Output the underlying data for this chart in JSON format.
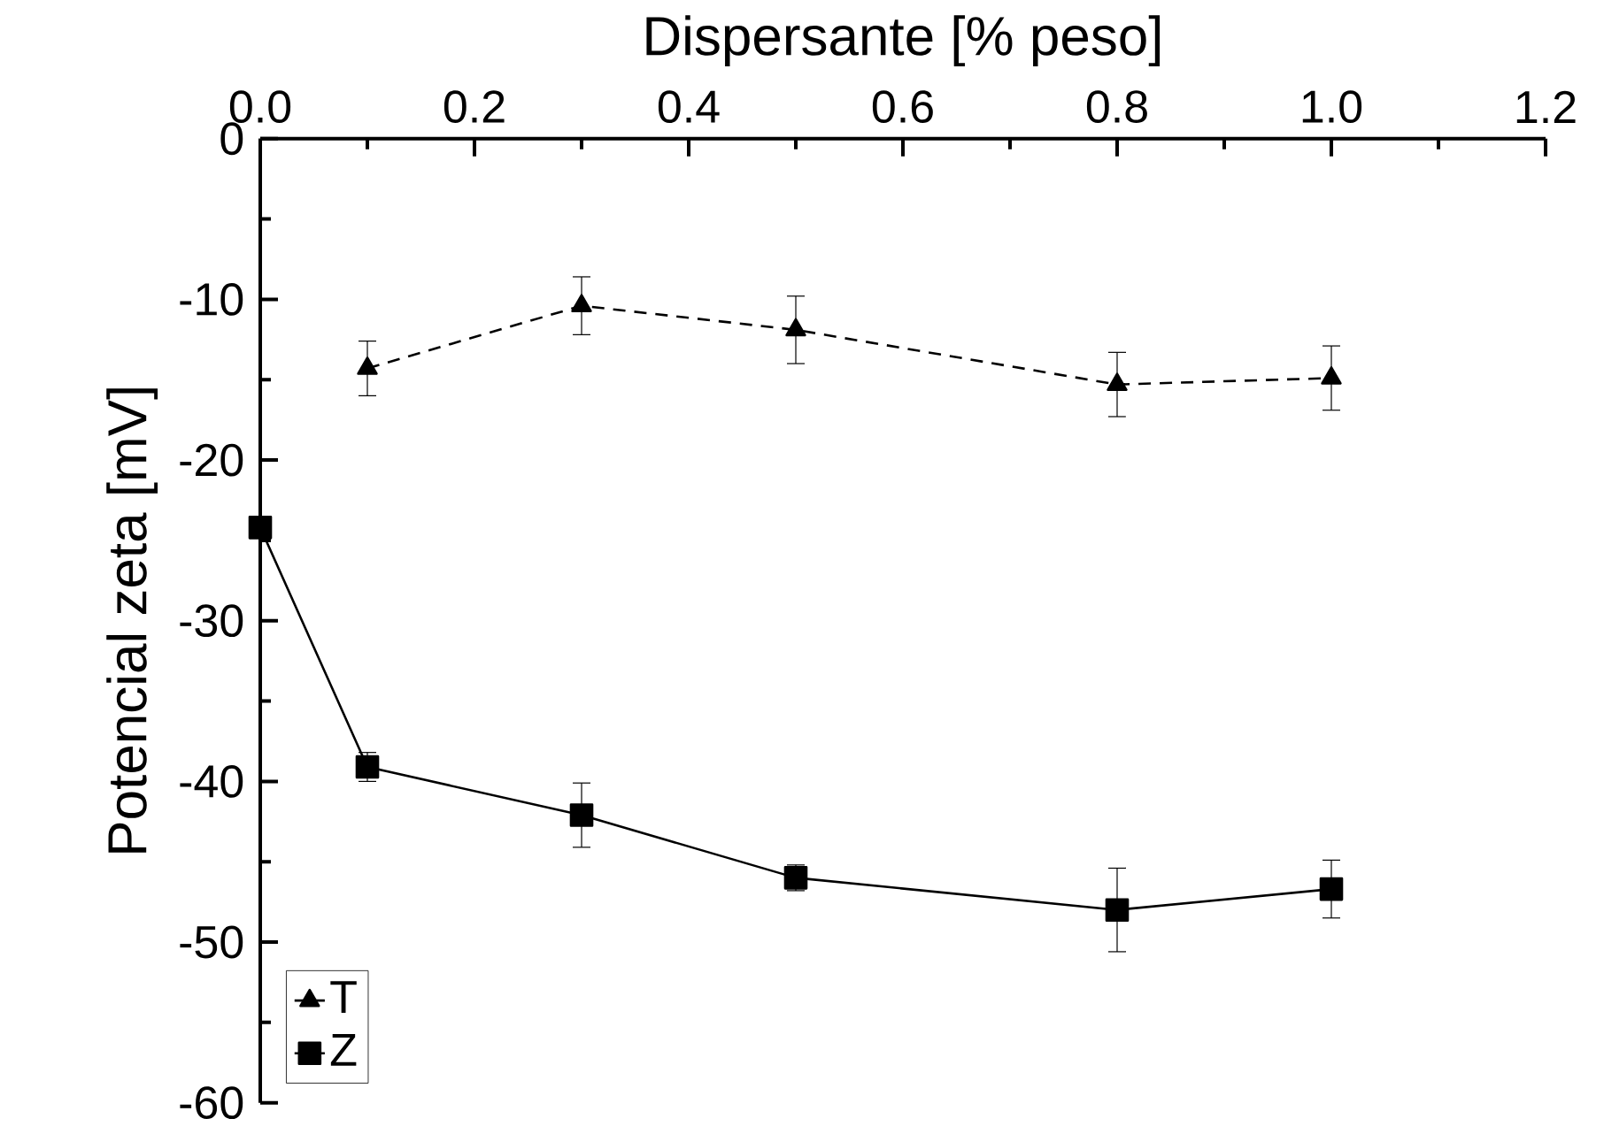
{
  "chart_data": {
    "type": "line",
    "xlabel": "Dispersante [% peso]",
    "ylabel": "Potencial zeta [mV]",
    "xlim": [
      0,
      1.2
    ],
    "xticks": [
      {
        "value": 0,
        "label": "0.0"
      },
      {
        "value": 0.2,
        "label": "0.2"
      },
      {
        "value": 0.4,
        "label": "0.4"
      },
      {
        "value": 0.6,
        "label": "0.6"
      },
      {
        "value": 0.8,
        "label": "0.8"
      },
      {
        "value": 1.0,
        "label": "1.0"
      },
      {
        "value": 1.2,
        "label": "1.2"
      }
    ],
    "ylim": [
      -60,
      0
    ],
    "yticks": [
      -60,
      -50,
      -40,
      -30,
      -20,
      -10,
      0
    ],
    "grid": false,
    "legend": "bottom left",
    "series": [
      {
        "name": "T",
        "color": "#000000",
        "marker": "triangle",
        "line_style": "dashed",
        "x": [
          0.1,
          0.3,
          0.5,
          0.8,
          1.0
        ],
        "values": [
          -14.3,
          -10.4,
          -11.9,
          -15.3,
          -14.9
        ],
        "errors": [
          1.7,
          1.8,
          2.1,
          2.0,
          2.0
        ]
      },
      {
        "name": "Z",
        "color": "#000000",
        "marker": "square",
        "line_style": "solid",
        "x": [
          0,
          0.1,
          0.3,
          0.5,
          0.8,
          1.0
        ],
        "values": [
          -24.2,
          -39.1,
          -42.1,
          -46.0,
          -48.0,
          -46.7
        ],
        "errors": [
          0.6,
          0.9,
          2.0,
          0.8,
          2.6,
          1.8
        ]
      }
    ]
  }
}
